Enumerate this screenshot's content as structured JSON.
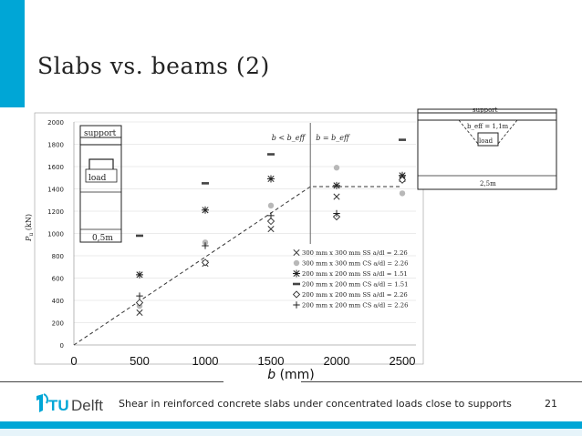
{
  "slide": {
    "title": "Slabs vs. beams (2)",
    "footer_text": "Shear in reinforced concrete slabs under concentrated loads close to supports",
    "page_number": "21",
    "logo_tu": "TU",
    "logo_delft": "Delft",
    "accent_color": "#00a6d6"
  },
  "chart_data": {
    "type": "scatter",
    "xlabel_var": "b",
    "xlabel_unit": "(mm)",
    "ylabel": "P_u (kN)",
    "xlim": [
      0,
      2500
    ],
    "ylim": [
      0,
      2000
    ],
    "x_ticks": [
      "0",
      "500",
      "1000",
      "1500",
      "2000",
      "2500"
    ],
    "y_ticks": [
      "0",
      "200",
      "400",
      "600",
      "800",
      "1000",
      "1200",
      "1400",
      "1600",
      "1800",
      "2000"
    ],
    "grid": true,
    "legend_position": "bottom-right",
    "series": [
      {
        "name": "300 mm x 300 mm SS a/dl = 2.26",
        "marker": "x",
        "points": [
          [
            500,
            290
          ],
          [
            1000,
            730
          ],
          [
            1500,
            1040
          ],
          [
            2000,
            1330
          ],
          [
            2500,
            1490
          ]
        ]
      },
      {
        "name": "300 mm x 300 mm CS a/dl = 2.26",
        "marker": "circle",
        "points": [
          [
            500,
            350
          ],
          [
            1000,
            920
          ],
          [
            1500,
            1250
          ],
          [
            2000,
            1590
          ],
          [
            2500,
            1360
          ]
        ]
      },
      {
        "name": "200 mm x 200 mm SS a/dl = 1.51",
        "marker": "star",
        "points": [
          [
            500,
            630
          ],
          [
            1000,
            1210
          ],
          [
            1500,
            1490
          ],
          [
            2000,
            1430
          ],
          [
            2500,
            1520
          ]
        ]
      },
      {
        "name": "200 mm x 200 mm CS a/dl = 1.51",
        "marker": "dash",
        "points": [
          [
            500,
            980
          ],
          [
            1000,
            1450
          ],
          [
            1500,
            1710
          ],
          [
            2500,
            1840
          ]
        ]
      },
      {
        "name": "200 mm x 200 mm SS a/dl = 2.26",
        "marker": "diamond",
        "points": [
          [
            500,
            380
          ],
          [
            1000,
            740
          ],
          [
            1500,
            1110
          ],
          [
            2000,
            1150
          ],
          [
            2500,
            1480
          ]
        ]
      },
      {
        "name": "200 mm x 200 mm CS a/dl = 2.26",
        "marker": "plus",
        "points": [
          [
            500,
            440
          ],
          [
            1000,
            890
          ],
          [
            1500,
            1160
          ],
          [
            2000,
            1180
          ]
        ]
      }
    ],
    "trend_line": {
      "points": [
        [
          0,
          0
        ],
        [
          1800,
          1420
        ],
        [
          2500,
          1420
        ]
      ]
    },
    "divider_x": 1800,
    "annotation_left": "b < b_eff",
    "annotation_right": "b = b_eff",
    "inset_left": {
      "support": "support",
      "load": "load",
      "dimension": "0,5m"
    },
    "inset_right": {
      "support": "support",
      "beff": "b_eff = 1,1m",
      "load": "load",
      "dimension": "2,5m"
    }
  }
}
